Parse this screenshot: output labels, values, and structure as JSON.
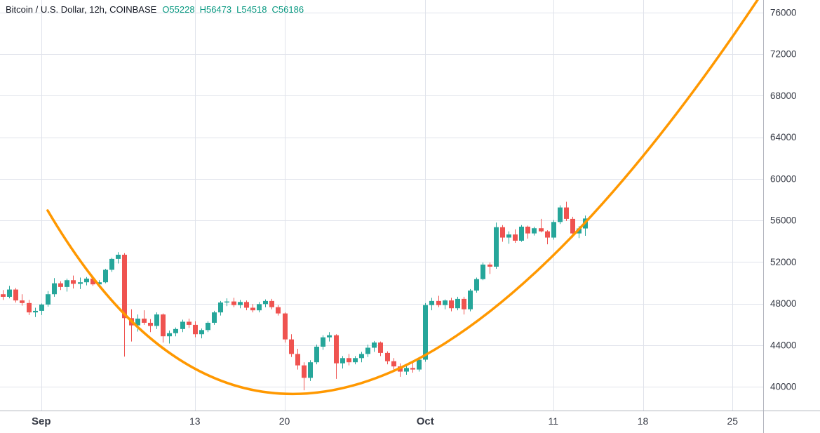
{
  "legend": {
    "title": "Bitcoin / U.S. Dollar, 12h, COINBASE",
    "ohlc": [
      "O55228",
      "H56473",
      "L54518",
      "C56186"
    ]
  },
  "chart_data": {
    "type": "candlestick",
    "title": "Bitcoin / U.S. Dollar",
    "interval": "12h",
    "exchange": "COINBASE",
    "last_candle": {
      "open": 55228,
      "high": 56473,
      "low": 54518,
      "close": 56186
    },
    "y_axis": {
      "ticks": [
        76000,
        72000,
        68000,
        64000,
        60000,
        56000,
        52000,
        48000,
        44000,
        40000
      ],
      "visible_range": [
        37700,
        77200
      ]
    },
    "x_axis": {
      "ticks": [
        {
          "index": 6,
          "label": "Sep",
          "major": true
        },
        {
          "index": 30,
          "label": "13",
          "major": false
        },
        {
          "index": 44,
          "label": "20",
          "major": false
        },
        {
          "index": 66,
          "label": "Oct",
          "major": true
        },
        {
          "index": 86,
          "label": "11",
          "major": false
        },
        {
          "index": 100,
          "label": "18",
          "major": false
        },
        {
          "index": 114,
          "label": "25",
          "major": false
        }
      ]
    },
    "candles": [
      [
        48900,
        49300,
        48350,
        48650
      ],
      [
        48650,
        49700,
        48500,
        49350
      ],
      [
        49350,
        49500,
        48100,
        48300
      ],
      [
        48300,
        48900,
        47800,
        48050
      ],
      [
        48050,
        48350,
        46900,
        47150
      ],
      [
        47150,
        47600,
        46700,
        47300
      ],
      [
        47300,
        48000,
        46900,
        47900
      ],
      [
        47900,
        49200,
        47700,
        48900
      ],
      [
        48900,
        50450,
        48650,
        49950
      ],
      [
        49950,
        50150,
        49300,
        49600
      ],
      [
        49600,
        50400,
        49150,
        50250
      ],
      [
        50250,
        50700,
        49450,
        49900
      ],
      [
        49900,
        50500,
        49400,
        50050
      ],
      [
        50050,
        50550,
        49750,
        50400
      ],
      [
        50400,
        50600,
        49700,
        49850
      ],
      [
        49850,
        50250,
        49550,
        50050
      ],
      [
        50050,
        51350,
        49950,
        51250
      ],
      [
        51250,
        52400,
        51050,
        52300
      ],
      [
        52300,
        52950,
        51850,
        52700
      ],
      [
        52700,
        52850,
        42900,
        46600
      ],
      [
        46600,
        47450,
        44350,
        45900
      ],
      [
        45900,
        46950,
        45300,
        46550
      ],
      [
        46550,
        47350,
        45950,
        46150
      ],
      [
        46150,
        46500,
        45250,
        45850
      ],
      [
        45850,
        47150,
        45550,
        46950
      ],
      [
        46950,
        47050,
        44250,
        44850
      ],
      [
        44850,
        45400,
        44150,
        45150
      ],
      [
        45150,
        45700,
        44850,
        45550
      ],
      [
        45550,
        46450,
        45250,
        46250
      ],
      [
        46250,
        46550,
        45650,
        45950
      ],
      [
        45950,
        46300,
        44750,
        45050
      ],
      [
        45050,
        45600,
        44650,
        45450
      ],
      [
        45450,
        46300,
        45250,
        46150
      ],
      [
        46150,
        47300,
        45950,
        47150
      ],
      [
        47150,
        48250,
        46850,
        48100
      ],
      [
        48100,
        48500,
        47750,
        48200
      ],
      [
        48200,
        48550,
        47650,
        47850
      ],
      [
        47850,
        48350,
        47550,
        48150
      ],
      [
        48150,
        48300,
        47350,
        47600
      ],
      [
        47600,
        47950,
        47150,
        47350
      ],
      [
        47350,
        48150,
        47150,
        47950
      ],
      [
        47950,
        48400,
        47650,
        48250
      ],
      [
        48250,
        48450,
        47450,
        47650
      ],
      [
        47650,
        47850,
        46850,
        47050
      ],
      [
        47050,
        47150,
        44250,
        44550
      ],
      [
        44550,
        45050,
        42850,
        43150
      ],
      [
        43150,
        43650,
        41650,
        42050
      ],
      [
        42050,
        42350,
        39650,
        40850
      ],
      [
        40850,
        42550,
        40550,
        42350
      ],
      [
        42350,
        44050,
        42150,
        43850
      ],
      [
        43850,
        44950,
        43550,
        44750
      ],
      [
        44750,
        45250,
        44350,
        44950
      ],
      [
        44950,
        45050,
        40750,
        42250
      ],
      [
        42250,
        42950,
        41750,
        42750
      ],
      [
        42750,
        43150,
        42050,
        42350
      ],
      [
        42350,
        42950,
        42150,
        42750
      ],
      [
        42750,
        43350,
        42350,
        43150
      ],
      [
        43150,
        44050,
        42850,
        43750
      ],
      [
        43750,
        44400,
        43350,
        44250
      ],
      [
        44250,
        44350,
        42950,
        43250
      ],
      [
        43250,
        43400,
        42150,
        42450
      ],
      [
        42450,
        42750,
        41650,
        41950
      ],
      [
        41950,
        42250,
        40950,
        41450
      ],
      [
        41450,
        42050,
        41150,
        41800
      ],
      [
        41800,
        42350,
        41350,
        41650
      ],
      [
        41650,
        42800,
        41450,
        42600
      ],
      [
        42600,
        48050,
        42400,
        47850
      ],
      [
        47850,
        48550,
        47350,
        48250
      ],
      [
        48250,
        48750,
        47650,
        47850
      ],
      [
        47850,
        48400,
        47450,
        48300
      ],
      [
        48300,
        48550,
        47250,
        47550
      ],
      [
        47550,
        48650,
        47350,
        48450
      ],
      [
        48450,
        48650,
        46950,
        47450
      ],
      [
        47450,
        49400,
        47250,
        49250
      ],
      [
        49250,
        50500,
        49050,
        50350
      ],
      [
        50350,
        51950,
        50250,
        51750
      ],
      [
        51750,
        51950,
        50850,
        51550
      ],
      [
        51550,
        55800,
        51350,
        55350
      ],
      [
        55350,
        55550,
        53950,
        54350
      ],
      [
        54350,
        54950,
        53750,
        54650
      ],
      [
        54650,
        55150,
        53850,
        54050
      ],
      [
        54050,
        55550,
        53950,
        55400
      ],
      [
        55400,
        55500,
        54250,
        54750
      ],
      [
        54750,
        55400,
        54550,
        55250
      ],
      [
        55250,
        56150,
        54850,
        54950
      ],
      [
        54950,
        55050,
        53700,
        54350
      ],
      [
        54350,
        56050,
        54150,
        55850
      ],
      [
        55850,
        57450,
        55650,
        57250
      ],
      [
        57250,
        57800,
        55950,
        56150
      ],
      [
        56150,
        56350,
        54350,
        54750
      ],
      [
        54750,
        55450,
        54300,
        55228
      ],
      [
        55228,
        56473,
        54518,
        56186
      ]
    ],
    "overlay_curve": {
      "shape": "quadratic-bezier",
      "description": "parabolic cup-shaped trend curve drawn over the candles",
      "color": "#ff9800",
      "width": 3.5,
      "points_index_price": [
        [
          7,
          56960
        ],
        [
          48.9,
          13080
        ],
        [
          119,
          78230
        ]
      ]
    },
    "colors": {
      "up": "#26a69a",
      "down": "#ef5350",
      "grid": "#e0e3eb",
      "axis_line": "#b2b5be",
      "text": "#363a45",
      "ohlc_value": "#089981",
      "background": "#ffffff"
    }
  }
}
